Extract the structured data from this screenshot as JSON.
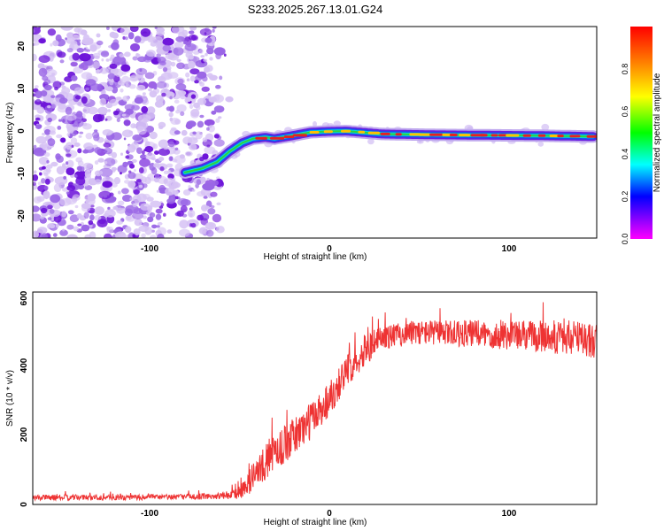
{
  "title": "S233.2025.267.13.01.G24",
  "chart_data": [
    {
      "type": "heatmap",
      "xlabel": "Height of straight line (km)",
      "ylabel": "Frequency (Hz)",
      "xlim": [
        -165,
        150
      ],
      "ylim": [
        -25,
        25
      ],
      "xticks": [
        "-100",
        "0",
        "100"
      ],
      "yticks": [
        "-20",
        "-10",
        "0",
        "10",
        "20"
      ],
      "colorbar": {
        "label": "Normalized spectral amplitude",
        "range": [
          0,
          1
        ],
        "ticks": [
          "0.0",
          "0.2",
          "0.4",
          "0.6",
          "0.8"
        ]
      },
      "ridge": {
        "description": "frequency trace of the signal",
        "x": [
          -80,
          -70,
          -62,
          -55,
          -48,
          -42,
          -35,
          -30,
          -20,
          -10,
          0,
          10,
          30,
          60,
          90,
          120,
          148
        ],
        "y": [
          -9.5,
          -8.5,
          -7,
          -4.5,
          -2.5,
          -1.5,
          -1.2,
          -1.5,
          -0.8,
          0,
          0.2,
          0.3,
          -0.4,
          -0.6,
          -0.7,
          -0.8,
          -1.0
        ]
      },
      "noise_region": {
        "x": [
          -165,
          -60
        ],
        "y": [
          -25,
          25
        ]
      }
    },
    {
      "type": "line",
      "xlabel": "Height of straight line (km)",
      "ylabel": "SNR (10 * v/v)",
      "xlim": [
        -165,
        150
      ],
      "ylim": [
        0,
        610
      ],
      "xticks": [
        "-100",
        "0",
        "100"
      ],
      "yticks": [
        "0",
        "200",
        "400",
        "600"
      ],
      "series": [
        {
          "name": "SNR",
          "color": "#ee3333",
          "envelope_x": [
            -165,
            -120,
            -80,
            -55,
            -48,
            -40,
            -30,
            -20,
            -10,
            0,
            10,
            20,
            30,
            50,
            80,
            110,
            130,
            150
          ],
          "envelope_mean": [
            20,
            20,
            22,
            25,
            40,
            90,
            150,
            190,
            240,
            300,
            380,
            440,
            480,
            495,
            490,
            485,
            480,
            470
          ],
          "noise_amplitude": [
            8,
            8,
            8,
            10,
            25,
            45,
            55,
            55,
            55,
            55,
            45,
            45,
            35,
            35,
            40,
            45,
            50,
            55
          ]
        }
      ]
    }
  ],
  "colors": {
    "noise_blob": "#7a2ad8",
    "noise_blob_light": "#cfb3f0",
    "line": "#ee3333"
  }
}
